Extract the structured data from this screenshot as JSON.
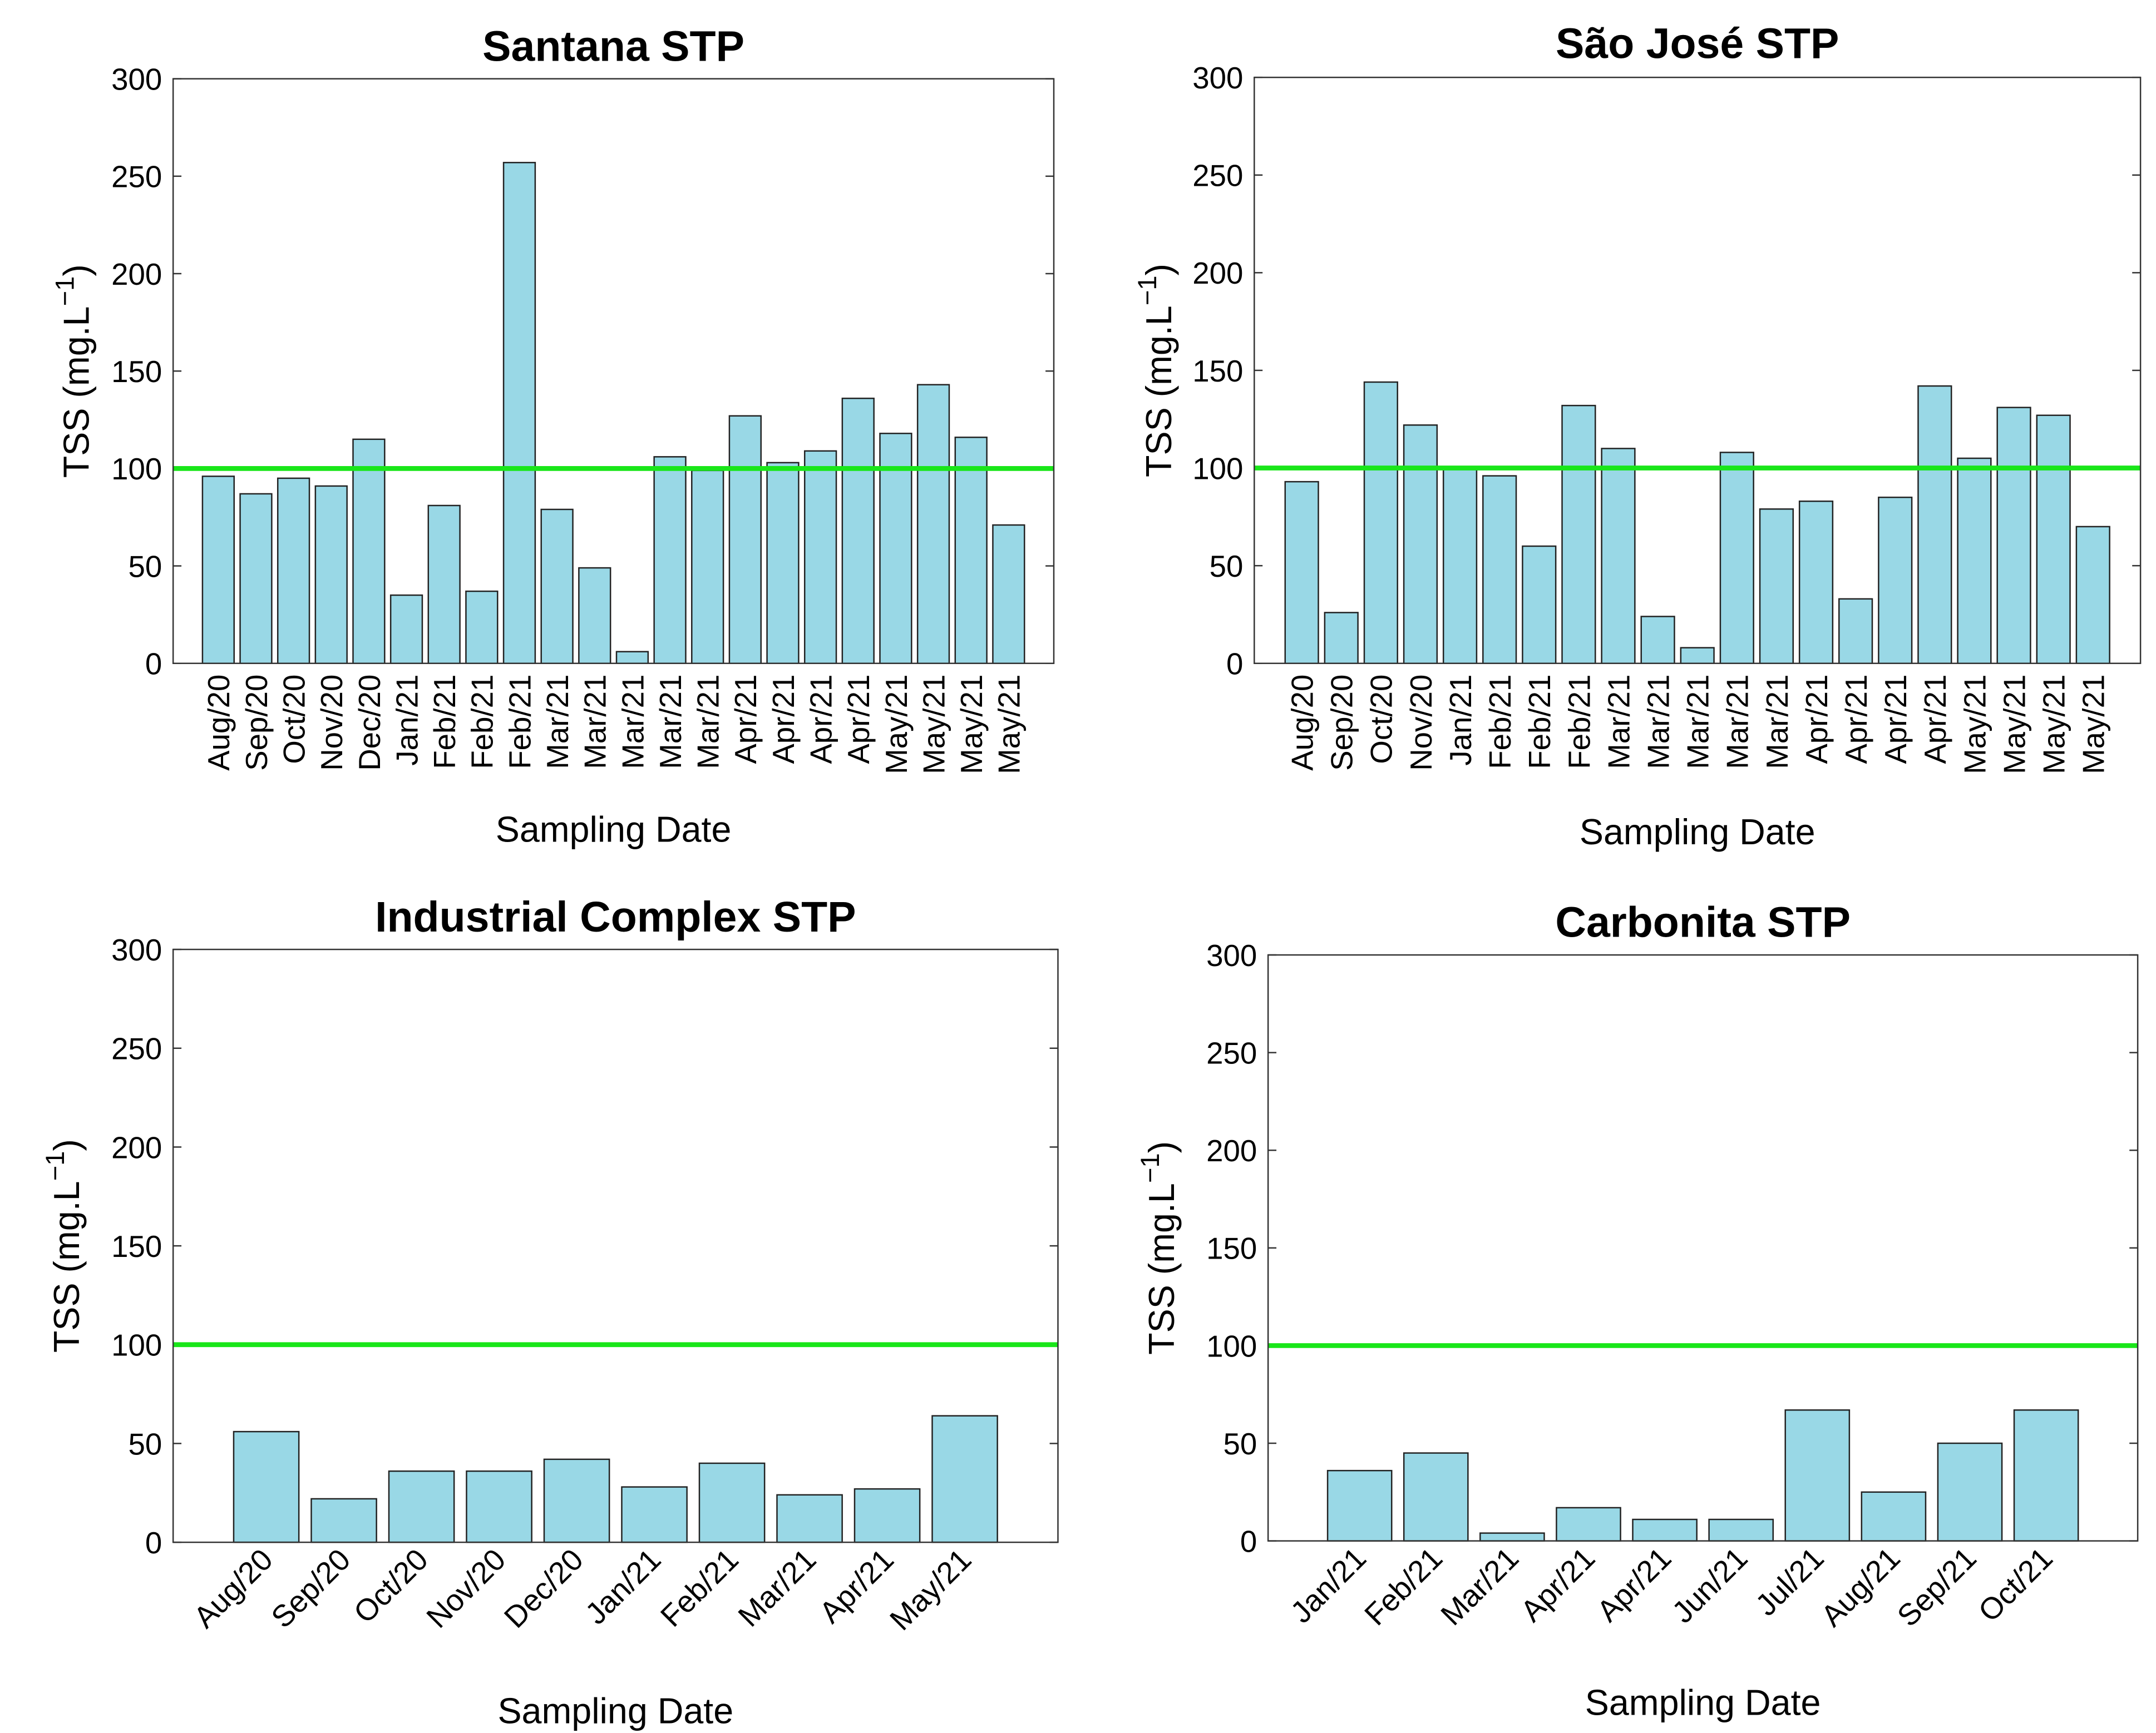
{
  "chart_data": [
    {
      "type": "bar",
      "title": "Santana STP",
      "xlabel": "Sampling Date",
      "ylabel": [
        "TSS (mg.L",
        "−1",
        ")"
      ],
      "categories": [
        "Aug/20",
        "Sep/20",
        "Oct/20",
        "Nov/20",
        "Dec/20",
        "Jan/21",
        "Feb/21",
        "Feb/21",
        "Feb/21",
        "Mar/21",
        "Mar/21",
        "Mar/21",
        "Mar/21",
        "Mar/21",
        "Apr/21",
        "Apr/21",
        "Apr/21",
        "Apr/21",
        "May/21",
        "May/21",
        "May/21",
        "May/21"
      ],
      "values": [
        96,
        87,
        95,
        91,
        115,
        35,
        81,
        37,
        257,
        79,
        49,
        6,
        106,
        99,
        127,
        103,
        109,
        136,
        118,
        143,
        116,
        71
      ],
      "color": "#99d8e6",
      "ylim": [
        0,
        300
      ],
      "yticks": [
        0,
        50,
        100,
        150,
        200,
        250,
        300
      ],
      "reference_line": {
        "value": 100,
        "color": "#19e619"
      }
    },
    {
      "type": "bar",
      "title": "São José STP",
      "xlabel": "Sampling Date",
      "ylabel": [
        "TSS (mg.L",
        "−1",
        ")"
      ],
      "categories": [
        "Aug/20",
        "Sep/20",
        "Oct/20",
        "Nov/20",
        "Jan/21",
        "Feb/21",
        "Feb/21",
        "Feb/21",
        "Mar/21",
        "Mar/21",
        "Mar/21",
        "Mar/21",
        "Mar/21",
        "Apr/21",
        "Apr/21",
        "Apr/21",
        "Apr/21",
        "May/21",
        "May/21",
        "May/21",
        "May/21"
      ],
      "values": [
        93,
        26,
        144,
        122,
        100,
        96,
        60,
        132,
        110,
        24,
        8,
        108,
        79,
        83,
        33,
        85,
        142,
        105,
        131,
        127,
        70
      ],
      "color": "#99d8e6",
      "ylim": [
        0,
        300
      ],
      "yticks": [
        0,
        50,
        100,
        150,
        200,
        250,
        300
      ],
      "reference_line": {
        "value": 100,
        "color": "#19e619"
      }
    },
    {
      "type": "bar",
      "title": "Industrial Complex STP",
      "xlabel": "Sampling Date",
      "ylabel": [
        "TSS (mg.L",
        "−1",
        ")"
      ],
      "categories": [
        "Aug/20",
        "Sep/20",
        "Oct/20",
        "Nov/20",
        "Dec/20",
        "Jan/21",
        "Feb/21",
        "Mar/21",
        "Apr/21",
        "May/21"
      ],
      "values": [
        56,
        22,
        36,
        36,
        42,
        28,
        40,
        24,
        27,
        64
      ],
      "color": "#99d8e6",
      "ylim": [
        0,
        300
      ],
      "yticks": [
        0,
        50,
        100,
        150,
        200,
        250,
        300
      ],
      "reference_line": {
        "value": 100,
        "color": "#19e619"
      }
    },
    {
      "type": "bar",
      "title": "Carbonita STP",
      "xlabel": "Sampling Date",
      "ylabel": [
        "TSS (mg.L",
        "−1",
        ")"
      ],
      "categories": [
        "Jan/21",
        "Feb/21",
        "Mar/21",
        "Apr/21",
        "Apr/21",
        "Jun/21",
        "Jul/21",
        "Aug/21",
        "Sep/21",
        "Oct/21"
      ],
      "values": [
        36,
        45,
        4,
        17,
        11,
        11,
        67,
        25,
        50,
        67
      ],
      "color": "#99d8e6",
      "ylim": [
        0,
        300
      ],
      "yticks": [
        0,
        50,
        100,
        150,
        200,
        250,
        300
      ],
      "reference_line": {
        "value": 100,
        "color": "#19e619"
      }
    }
  ]
}
